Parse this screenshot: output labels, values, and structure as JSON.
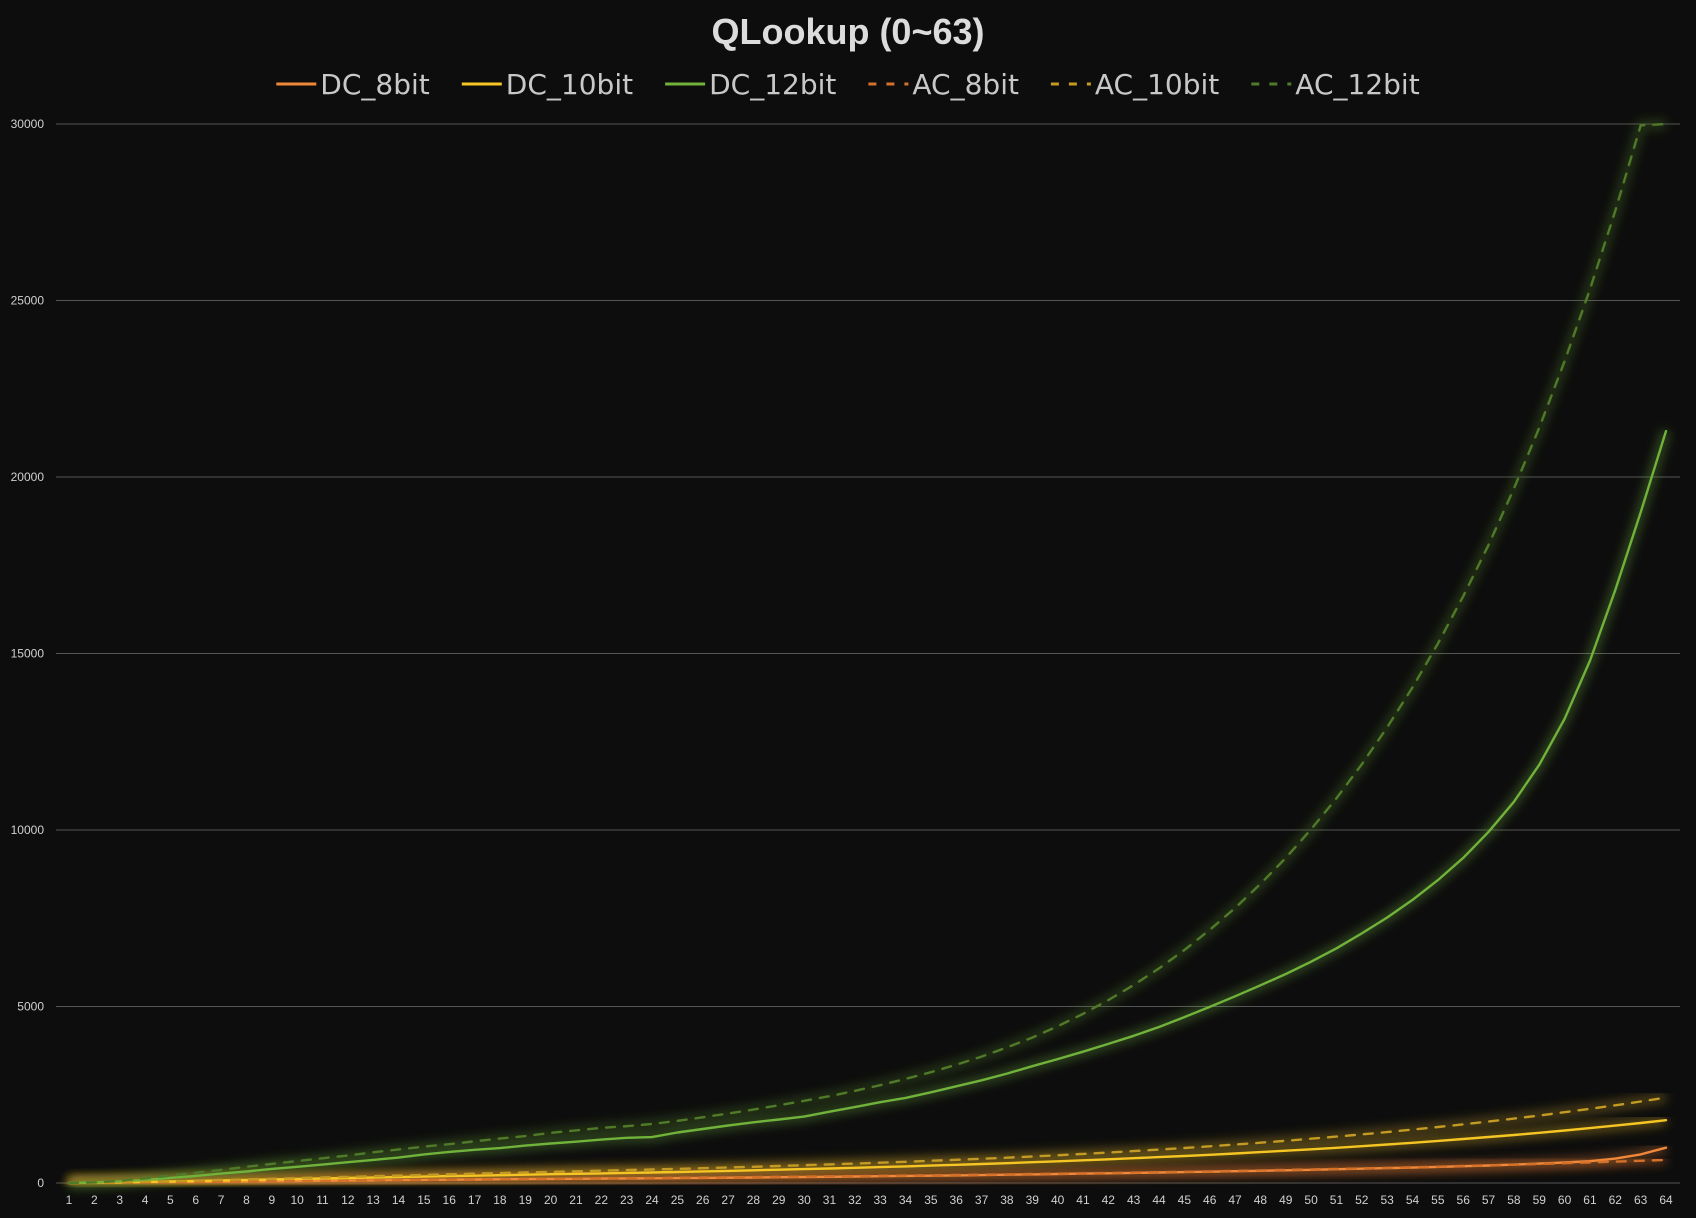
{
  "chart_data": {
    "type": "line",
    "title": "QLookup (0~63)",
    "xlabel": "",
    "ylabel": "",
    "ylim": [
      0,
      30000
    ],
    "yticks": [
      0,
      5000,
      10000,
      15000,
      20000,
      25000,
      30000
    ],
    "grid": true,
    "legend_position": "top",
    "categories": [
      1,
      2,
      3,
      4,
      5,
      6,
      7,
      8,
      9,
      10,
      11,
      12,
      13,
      14,
      15,
      16,
      17,
      18,
      19,
      20,
      21,
      22,
      23,
      24,
      25,
      26,
      27,
      28,
      29,
      30,
      31,
      32,
      33,
      34,
      35,
      36,
      37,
      38,
      39,
      40,
      41,
      42,
      43,
      44,
      45,
      46,
      47,
      48,
      49,
      50,
      51,
      52,
      53,
      54,
      55,
      56,
      57,
      58,
      59,
      60,
      61,
      62,
      63,
      64
    ],
    "series": [
      {
        "name": "DC_8bit",
        "color": "#f0883a",
        "dash": false,
        "values": [
          4,
          8,
          13,
          19,
          26,
          32,
          39,
          45,
          51,
          57,
          63,
          69,
          75,
          81,
          88,
          93,
          99,
          105,
          110,
          115,
          120,
          125,
          129,
          134,
          138,
          144,
          150,
          157,
          164,
          171,
          177,
          184,
          192,
          200,
          208,
          216,
          225,
          235,
          245,
          254,
          265,
          275,
          285,
          297,
          309,
          321,
          333,
          347,
          361,
          375,
          390,
          405,
          421,
          437,
          455,
          476,
          496,
          520,
          550,
          580,
          617,
          690,
          810,
          1000
        ]
      },
      {
        "name": "DC_10bit",
        "color": "#f5c524",
        "dash": false,
        "values": [
          4,
          9,
          18,
          30,
          43,
          56,
          70,
          84,
          98,
          113,
          127,
          141,
          154,
          168,
          182,
          196,
          208,
          222,
          235,
          248,
          260,
          273,
          285,
          297,
          312,
          328,
          344,
          360,
          377,
          395,
          412,
          430,
          450,
          470,
          492,
          515,
          538,
          562,
          588,
          614,
          642,
          671,
          702,
          733,
          766,
          800,
          836,
          874,
          914,
          955,
          998,
          1043,
          1091,
          1140,
          1192,
          1246,
          1302,
          1361,
          1423,
          1488,
          1556,
          1627,
          1701,
          1778
        ]
      },
      {
        "name": "DC_12bit",
        "color": "#70b23a",
        "dash": false,
        "values": [
          4,
          14,
          42,
          88,
          145,
          200,
          265,
          325,
          400,
          460,
          520,
          590,
          655,
          720,
          810,
          880,
          940,
          990,
          1060,
          1120,
          1170,
          1230,
          1280,
          1300,
          1430,
          1530,
          1630,
          1720,
          1800,
          1880,
          2020,
          2150,
          2290,
          2410,
          2570,
          2740,
          2910,
          3100,
          3310,
          3510,
          3720,
          3940,
          4170,
          4420,
          4700,
          4990,
          5290,
          5600,
          5920,
          6270,
          6650,
          7070,
          7520,
          8020,
          8580,
          9210,
          9950,
          10800,
          11850,
          13150,
          14800,
          16800,
          19000,
          21300
        ]
      },
      {
        "name": "AC_8bit",
        "color": "#d4702a",
        "dash": true,
        "values": [
          4,
          9,
          13,
          18,
          25,
          31,
          37,
          44,
          50,
          56,
          62,
          68,
          74,
          80,
          87,
          93,
          99,
          105,
          111,
          118,
          124,
          130,
          136,
          142,
          148,
          155,
          161,
          168,
          175,
          182,
          189,
          196,
          204,
          211,
          219,
          228,
          236,
          245,
          254,
          264,
          273,
          284,
          295,
          306,
          318,
          330,
          343,
          356,
          370,
          384,
          398,
          413,
          429,
          446,
          463,
          481,
          500,
          519,
          540,
          561,
          583,
          606,
          629,
          654
        ]
      },
      {
        "name": "AC_10bit",
        "color": "#c29a24",
        "dash": true,
        "values": [
          4,
          9,
          19,
          31,
          48,
          66,
          84,
          102,
          120,
          138,
          156,
          174,
          192,
          210,
          228,
          246,
          263,
          280,
          297,
          314,
          331,
          348,
          365,
          382,
          400,
          420,
          440,
          460,
          481,
          503,
          526,
          550,
          575,
          601,
          628,
          656,
          686,
          718,
          751,
          786,
          823,
          862,
          903,
          946,
          991,
          1039,
          1089,
          1141,
          1196,
          1254,
          1314,
          1377,
          1443,
          1512,
          1585,
          1661,
          1741,
          1825,
          1913,
          2005,
          2101,
          2202,
          2308,
          2419
        ]
      },
      {
        "name": "AC_12bit",
        "color": "#4f7a2a",
        "dash": true,
        "values": [
          4,
          18,
          60,
          130,
          210,
          290,
          370,
          460,
          540,
          620,
          700,
          780,
          870,
          950,
          1030,
          1100,
          1180,
          1260,
          1330,
          1420,
          1490,
          1560,
          1610,
          1670,
          1760,
          1860,
          1970,
          2080,
          2200,
          2330,
          2460,
          2610,
          2770,
          2950,
          3140,
          3350,
          3580,
          3840,
          4120,
          4440,
          4790,
          5180,
          5610,
          6080,
          6600,
          7170,
          7790,
          8470,
          9210,
          10020,
          10900,
          11860,
          12910,
          14040,
          15280,
          16620,
          18080,
          19670,
          21400,
          23280,
          25320,
          27540,
          29960,
          32590
        ]
      }
    ]
  }
}
